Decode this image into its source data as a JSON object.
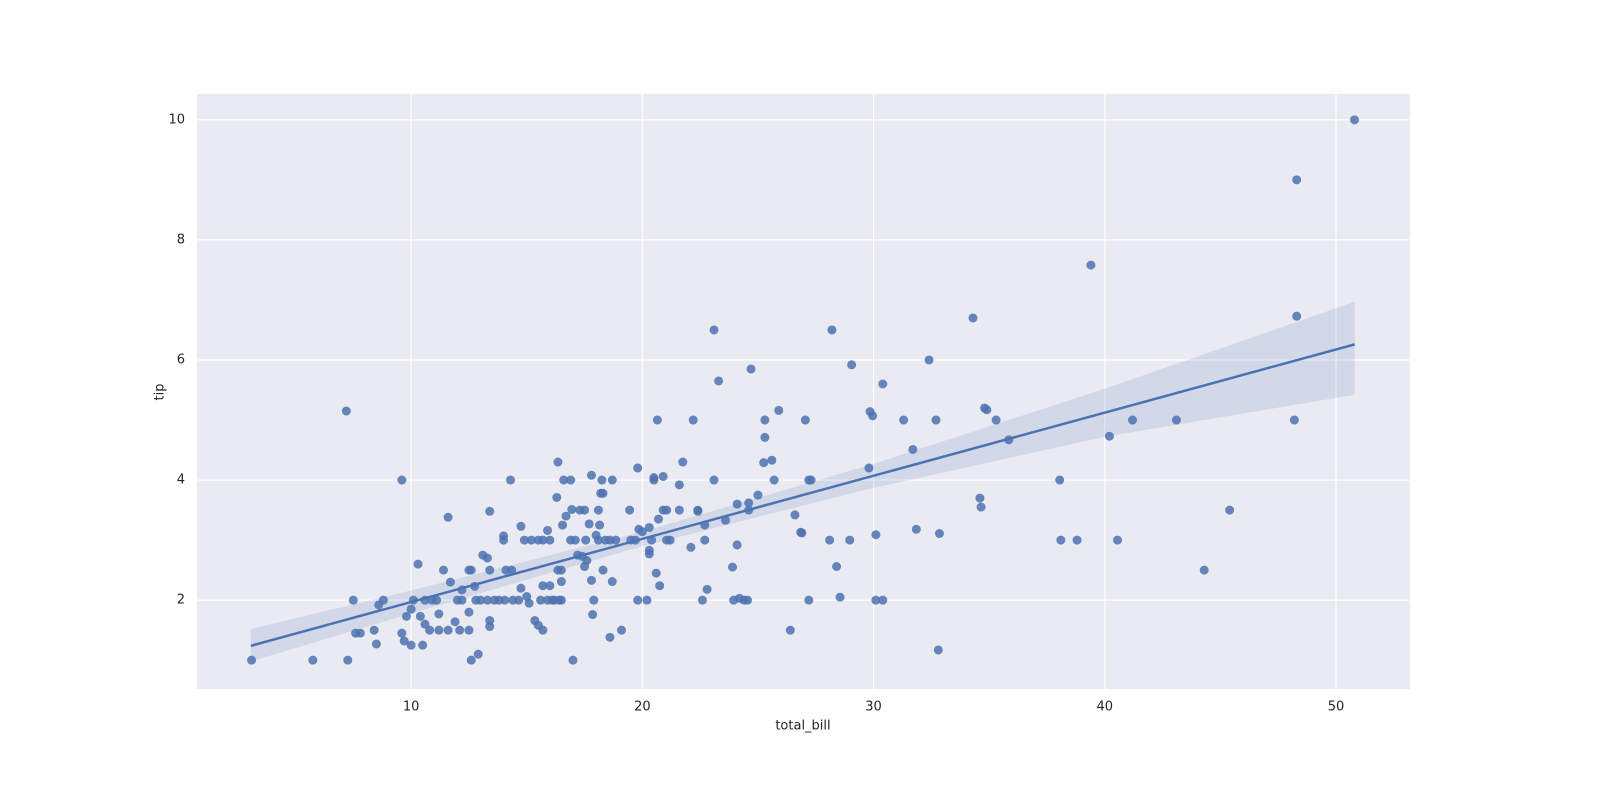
{
  "chart_data": {
    "type": "scatter",
    "x_label": "total_bill",
    "y_label": "tip",
    "color": "#4c72b0",
    "background": "#eaeaf2",
    "grid": true,
    "xlim": [
      0.74,
      53.2
    ],
    "ylim": [
      0.52,
      10.43
    ],
    "xticks": [
      10,
      20,
      30,
      40,
      50
    ],
    "yticks": [
      2,
      4,
      6,
      8,
      10
    ],
    "x": [
      3.1,
      5.75,
      7.26,
      7.2,
      7.5,
      7.6,
      7.8,
      8.4,
      8.5,
      8.6,
      8.8,
      9.6,
      9.6,
      9.7,
      9.8,
      10.0,
      10.0,
      10.1,
      10.3,
      10.4,
      10.5,
      10.6,
      10.6,
      10.8,
      10.9,
      11.1,
      11.2,
      11.2,
      11.4,
      11.6,
      11.6,
      11.7,
      11.9,
      12.0,
      12.1,
      12.2,
      12.2,
      12.5,
      12.5,
      12.5,
      12.6,
      12.6,
      12.75,
      12.8,
      12.9,
      13.0,
      13.1,
      13.3,
      13.3,
      13.4,
      13.4,
      13.4,
      13.4,
      13.6,
      13.8,
      14.0,
      14.0,
      14.05,
      14.1,
      14.3,
      14.35,
      14.4,
      14.65,
      14.75,
      14.75,
      14.9,
      15.0,
      15.1,
      15.2,
      15.35,
      15.5,
      15.5,
      15.6,
      15.7,
      15.7,
      15.7,
      15.9,
      15.9,
      16.0,
      16.0,
      16.1,
      16.2,
      16.3,
      16.35,
      16.35,
      16.4,
      16.5,
      16.5,
      16.5,
      16.55,
      16.6,
      16.7,
      16.9,
      16.9,
      16.95,
      17.0,
      17.1,
      17.2,
      17.3,
      17.4,
      17.5,
      17.5,
      17.55,
      17.6,
      17.7,
      17.8,
      17.8,
      17.85,
      17.9,
      18.0,
      18.1,
      18.1,
      18.15,
      18.2,
      18.25,
      18.3,
      18.3,
      18.4,
      18.6,
      18.6,
      18.7,
      18.7,
      18.85,
      19.1,
      19.45,
      19.5,
      19.7,
      19.8,
      19.8,
      19.85,
      20.0,
      20.2,
      20.3,
      20.3,
      20.3,
      20.4,
      20.5,
      20.5,
      20.6,
      20.65,
      20.7,
      20.75,
      20.9,
      20.9,
      21.05,
      21.05,
      21.2,
      21.6,
      21.6,
      21.75,
      22.1,
      22.2,
      22.4,
      22.4,
      22.6,
      22.7,
      22.7,
      22.8,
      23.1,
      23.1,
      23.3,
      23.6,
      23.9,
      23.95,
      24.1,
      24.1,
      24.2,
      24.4,
      24.6,
      24.6,
      24.55,
      24.7,
      25.0,
      25.25,
      25.3,
      25.3,
      25.6,
      25.7,
      25.9,
      26.4,
      26.6,
      26.85,
      26.9,
      27.05,
      27.2,
      27.2,
      27.3,
      28.1,
      28.2,
      28.4,
      28.55,
      28.97,
      29.05,
      29.8,
      29.85,
      29.96,
      30.1,
      30.1,
      30.4,
      30.4,
      31.3,
      31.7,
      31.85,
      32.4,
      32.7,
      32.8,
      32.85,
      34.3,
      34.6,
      34.65,
      34.8,
      34.9,
      35.3,
      35.85,
      38.05,
      38.1,
      38.8,
      39.4,
      40.2,
      40.55,
      41.2,
      43.1,
      44.3,
      45.4,
      48.2,
      48.3,
      48.3,
      50.8
    ],
    "values": [
      1.0,
      1.0,
      1.0,
      5.15,
      2.0,
      1.45,
      1.45,
      1.5,
      1.27,
      1.92,
      2.0,
      4.0,
      1.45,
      1.32,
      1.73,
      1.85,
      1.25,
      2.0,
      2.6,
      1.73,
      1.25,
      2.0,
      1.6,
      1.5,
      2.0,
      2.0,
      1.5,
      1.77,
      2.5,
      1.5,
      3.38,
      2.3,
      1.64,
      2.0,
      1.5,
      2.17,
      2.0,
      2.5,
      1.8,
      1.5,
      1.0,
      2.5,
      2.23,
      2.0,
      1.1,
      2.0,
      2.75,
      2.7,
      2.0,
      2.5,
      3.48,
      1.66,
      1.56,
      2.0,
      2.0,
      3.07,
      3.0,
      2.0,
      2.5,
      4.0,
      2.5,
      2.0,
      2.0,
      3.23,
      2.2,
      3.0,
      2.06,
      1.95,
      3.0,
      1.66,
      3.0,
      1.58,
      2.0,
      3.0,
      1.5,
      2.24,
      3.16,
      2.0,
      3.0,
      2.24,
      2.0,
      2.0,
      3.71,
      4.3,
      2.5,
      2.0,
      2.31,
      2.5,
      2.0,
      3.25,
      4.0,
      3.4,
      4.0,
      3.0,
      3.51,
      1.0,
      3.0,
      2.75,
      3.5,
      2.73,
      3.5,
      2.56,
      3.0,
      2.66,
      3.27,
      4.08,
      2.33,
      1.76,
      2.0,
      3.08,
      3.5,
      3.0,
      3.25,
      3.78,
      4.0,
      3.78,
      2.5,
      3.0,
      3.0,
      1.38,
      4.0,
      2.31,
      3.0,
      1.5,
      3.5,
      3.0,
      3.0,
      2.0,
      4.2,
      3.18,
      3.14,
      2.0,
      3.21,
      2.83,
      2.77,
      3.0,
      4.04,
      4.0,
      2.45,
      5.0,
      3.35,
      2.24,
      3.5,
      4.06,
      3.5,
      3.0,
      3.0,
      3.92,
      3.5,
      4.3,
      2.88,
      5.0,
      3.48,
      3.5,
      2.0,
      3.0,
      3.25,
      2.18,
      4.0,
      6.5,
      5.65,
      3.33,
      2.55,
      2.0,
      2.92,
      3.6,
      2.03,
      2.0,
      3.5,
      3.62,
      2.0,
      5.85,
      3.75,
      4.29,
      4.71,
      5.0,
      4.33,
      4.0,
      5.16,
      1.5,
      3.42,
      3.13,
      3.12,
      5.0,
      2.0,
      4.0,
      4.0,
      3.0,
      6.5,
      2.56,
      2.05,
      3.0,
      5.92,
      4.2,
      5.14,
      5.07,
      2.0,
      3.09,
      2.0,
      5.6,
      5.0,
      4.51,
      3.18,
      6.0,
      5.0,
      1.17,
      3.11,
      6.7,
      3.7,
      3.55,
      5.2,
      5.17,
      5.0,
      4.67,
      4.0,
      3.0,
      3.0,
      7.58,
      4.73,
      3.0,
      5.0,
      5.0,
      2.5,
      3.5,
      5.0,
      6.73,
      9.0,
      10.0
    ],
    "regression": {
      "x": [
        3.07,
        50.81
      ],
      "values": [
        1.24,
        6.26
      ]
    },
    "ci_band": {
      "x": [
        3.07,
        10,
        20,
        30,
        40,
        50.81
      ],
      "lower": [
        0.98,
        1.78,
        2.9,
        3.87,
        4.72,
        5.42
      ],
      "upper": [
        1.52,
        2.16,
        3.14,
        4.27,
        5.52,
        6.97
      ]
    }
  }
}
